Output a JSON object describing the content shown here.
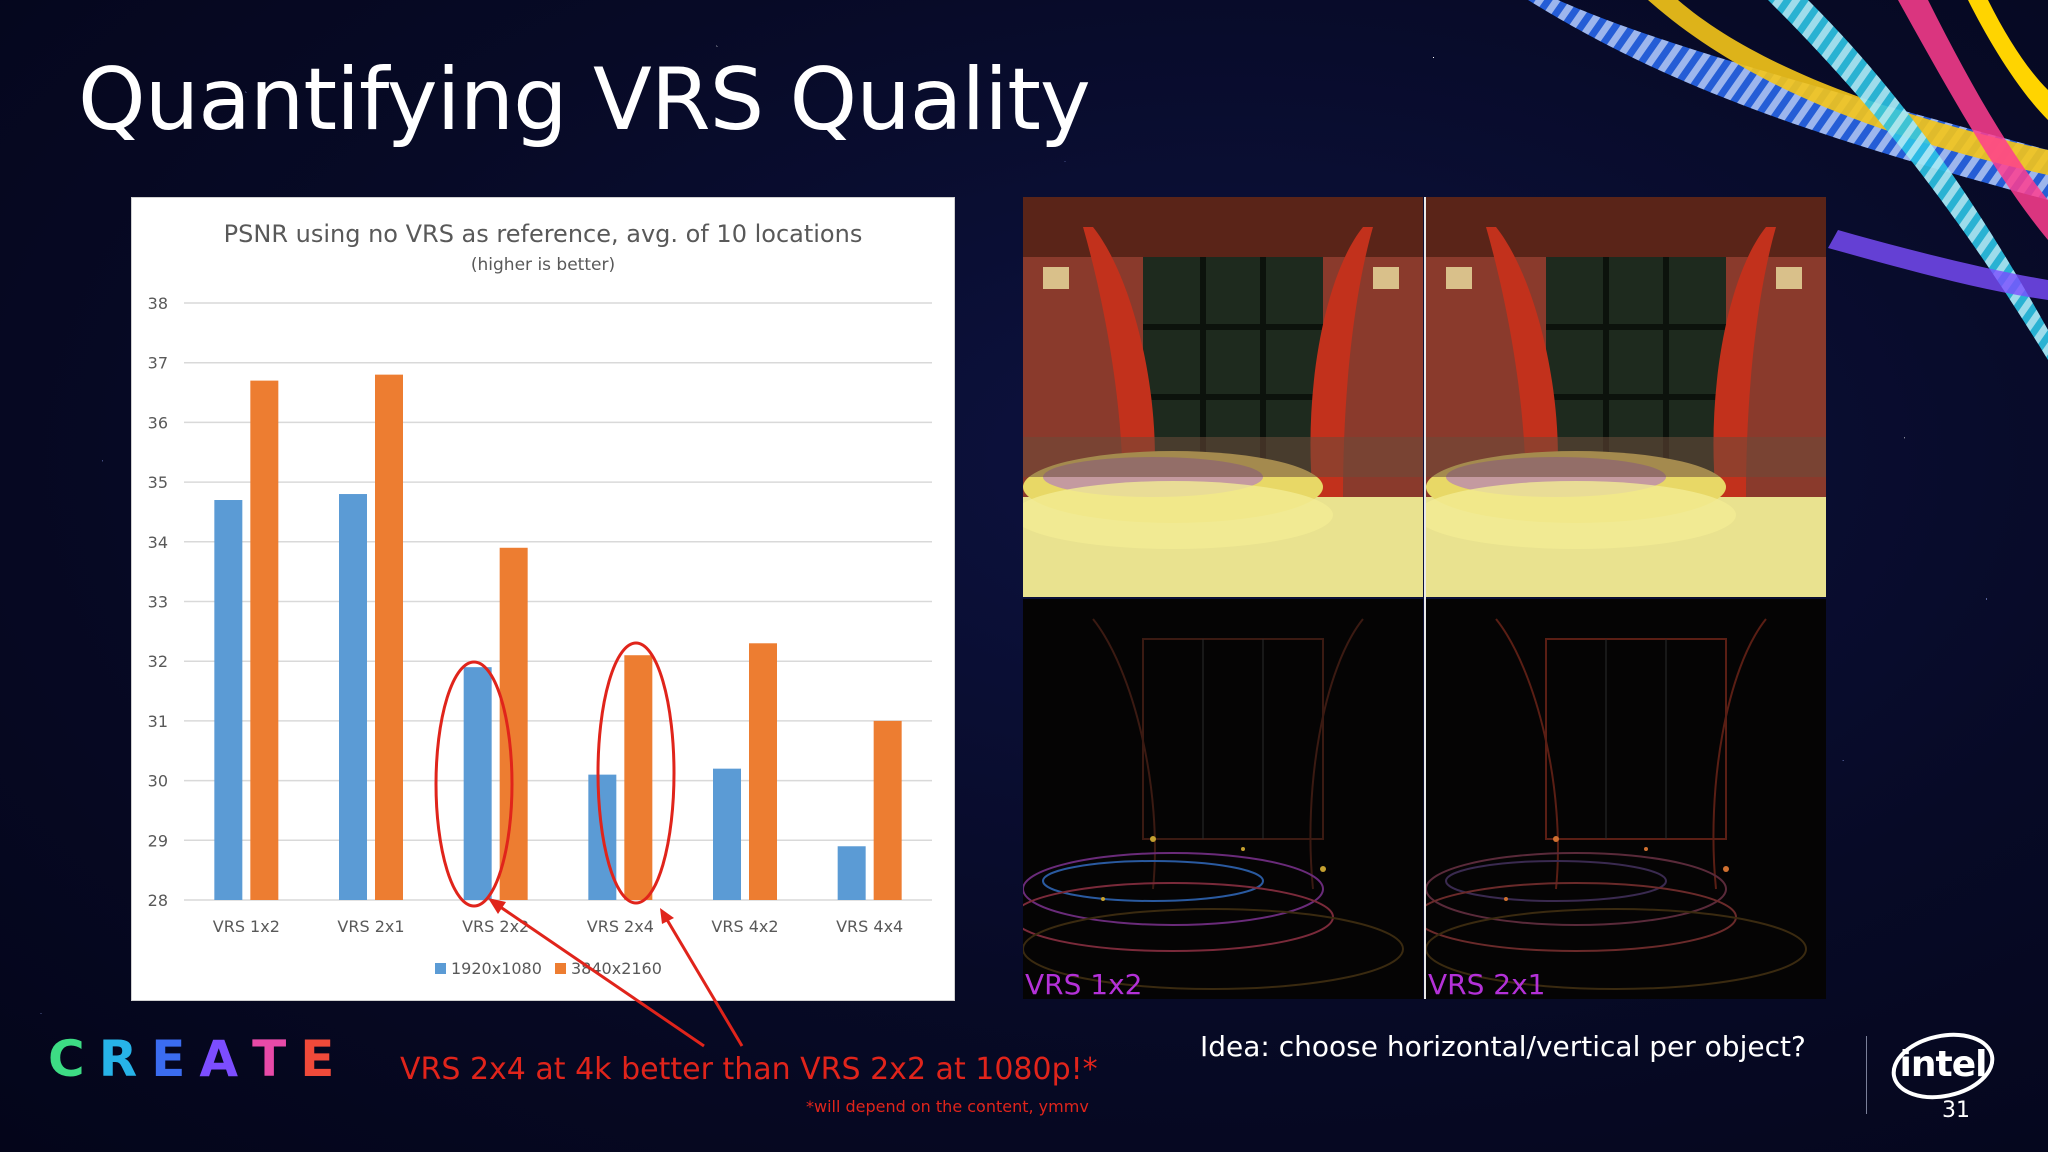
{
  "slide": {
    "title": "Quantifying VRS Quality",
    "page_number": "31",
    "conclusion": "VRS 2x4 at 4k better than VRS 2x2 at 1080p!*",
    "footnote": "*will depend on the content, ymmv",
    "idea": "Idea: choose horizontal/vertical per object?",
    "create_logo": "CREATE",
    "create_colors": [
      "#3ddc84",
      "#27b3e8",
      "#3b6cf0",
      "#7c4dff",
      "#e84aa8",
      "#f04a3a"
    ],
    "intel_logo": "intel",
    "annotation_color": "#e0241b"
  },
  "renders": {
    "labels": [
      "VRS 1x2",
      "VRS 2x1"
    ],
    "label_color": "#b431d8"
  },
  "chart_data": {
    "type": "bar",
    "title": "PSNR using no VRS as reference, avg. of 10 locations",
    "subtitle": "(higher is better)",
    "xlabel": "",
    "ylabel": "",
    "categories": [
      "VRS 1x2",
      "VRS 2x1",
      "VRS 2x2",
      "VRS 2x4",
      "VRS 4x2",
      "VRS 4x4"
    ],
    "series": [
      {
        "name": "1920x1080",
        "color": "#5b9bd5",
        "values": [
          34.7,
          34.8,
          31.9,
          30.1,
          30.2,
          28.9
        ]
      },
      {
        "name": "3840x2160",
        "color": "#ed7d31",
        "values": [
          36.7,
          36.8,
          33.9,
          32.1,
          32.3,
          31.0
        ]
      }
    ],
    "ylim": [
      28,
      38
    ],
    "yticks": [
      28,
      29,
      30,
      31,
      32,
      33,
      34,
      35,
      36,
      37,
      38
    ],
    "grid": true,
    "legend_position": "bottom",
    "highlighted_categories": [
      "VRS 2x2",
      "VRS 2x4"
    ]
  }
}
